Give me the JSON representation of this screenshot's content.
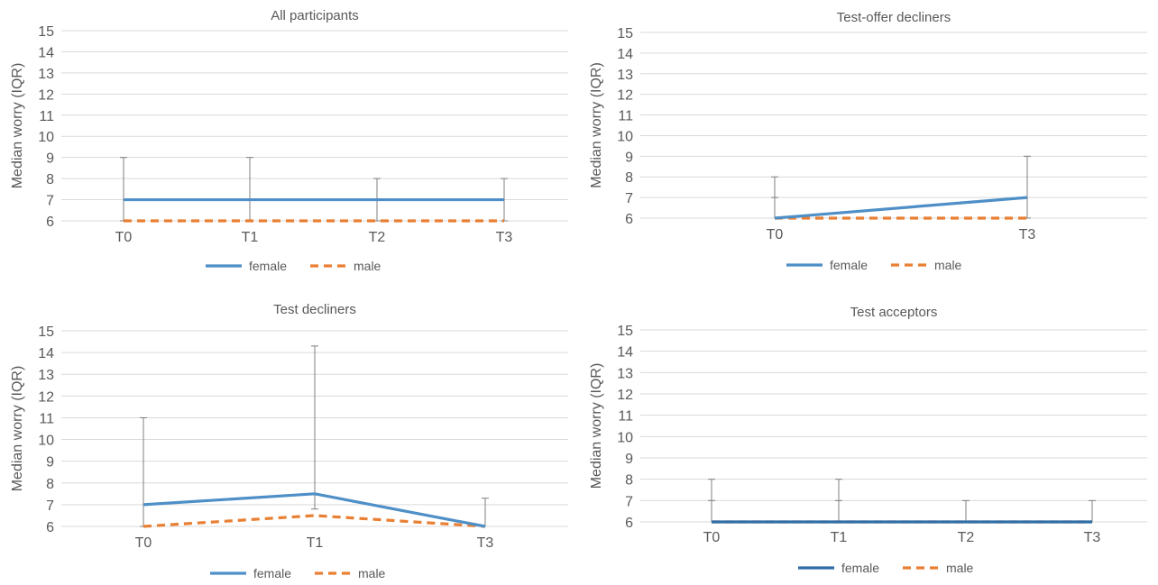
{
  "chart_data": [
    {
      "type": "line",
      "title": "All participants",
      "ylabel": "Median worry (IQR)",
      "xlabel": "",
      "categories": [
        "T0",
        "T1",
        "T2",
        "T3"
      ],
      "ylim": [
        6,
        15
      ],
      "yticks": [
        6,
        7,
        8,
        9,
        10,
        11,
        12,
        13,
        14,
        15
      ],
      "grid": true,
      "legend": "bottom-center",
      "series": [
        {
          "name": "female",
          "color": "#4e8fc7",
          "dash": "solid",
          "values": [
            7,
            7,
            7,
            7
          ],
          "error_upper": [
            9,
            9,
            8,
            8
          ],
          "error_lower": [
            6,
            6,
            6,
            6
          ]
        },
        {
          "name": "male",
          "color": "#e97f32",
          "dash": "dashed",
          "values": [
            6,
            6,
            6,
            6
          ]
        }
      ]
    },
    {
      "type": "line",
      "title": "Test-offer decliners",
      "ylabel": "Median worry (IQR)",
      "xlabel": "",
      "categories": [
        "T0",
        "T3"
      ],
      "ylim": [
        6,
        15
      ],
      "yticks": [
        6,
        7,
        8,
        9,
        10,
        11,
        12,
        13,
        14,
        15
      ],
      "grid": true,
      "legend": "bottom-center",
      "series": [
        {
          "name": "female",
          "color": "#4e8fc7",
          "dash": "solid",
          "values": [
            6,
            7
          ],
          "error_upper": [
            8,
            9
          ],
          "error_lower": [
            6,
            6
          ]
        },
        {
          "name": "male",
          "color": "#e97f32",
          "dash": "dashed",
          "values": [
            6,
            6
          ],
          "error_upper": [
            7,
            null
          ]
        }
      ]
    },
    {
      "type": "line",
      "title": "Test decliners",
      "ylabel": "Median worry (IQR)",
      "xlabel": "",
      "categories": [
        "T0",
        "T1",
        "T3"
      ],
      "ylim": [
        6,
        15
      ],
      "yticks": [
        6,
        7,
        8,
        9,
        10,
        11,
        12,
        13,
        14,
        15
      ],
      "grid": true,
      "legend": "bottom-center",
      "series": [
        {
          "name": "female",
          "color": "#4e8fc7",
          "dash": "solid",
          "values": [
            7,
            7.5,
            6
          ],
          "error_upper": [
            11,
            14.3,
            7.3
          ],
          "error_lower": [
            6,
            6.8,
            6
          ]
        },
        {
          "name": "male",
          "color": "#e97f32",
          "dash": "dashed",
          "values": [
            6,
            6.5,
            6
          ]
        }
      ]
    },
    {
      "type": "line",
      "title": "Test acceptors",
      "ylabel": "Median worry (IQR)",
      "xlabel": "",
      "categories": [
        "T0",
        "T1",
        "T2",
        "T3"
      ],
      "ylim": [
        6,
        15
      ],
      "yticks": [
        6,
        7,
        8,
        9,
        10,
        11,
        12,
        13,
        14,
        15
      ],
      "grid": true,
      "legend": "bottom-center",
      "series": [
        {
          "name": "female",
          "color": "#2f6ea8",
          "dash": "solid",
          "values": [
            6,
            6,
            6,
            6
          ],
          "error_upper": [
            8,
            8,
            7,
            7
          ],
          "error_lower": [
            6,
            6,
            6,
            6
          ]
        },
        {
          "name": "male",
          "color": "#e97f32",
          "dash": "dashed",
          "values": [
            6,
            6,
            6,
            6
          ],
          "error_upper": [
            7,
            7,
            null,
            null
          ]
        }
      ]
    }
  ]
}
